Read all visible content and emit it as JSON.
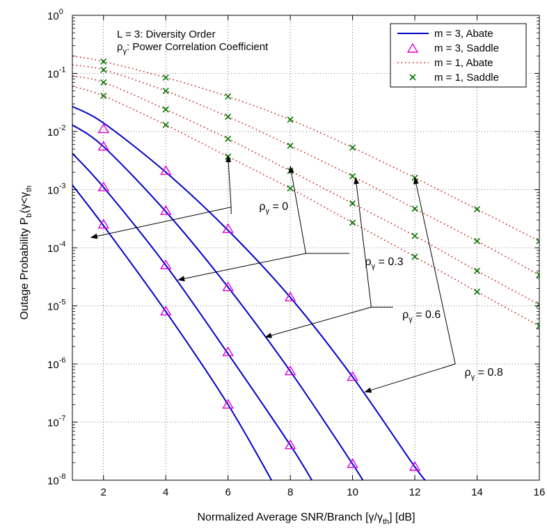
{
  "chart_data": {
    "type": "line",
    "xlabel": {
      "main": "Normalized Average SNR/Branch [",
      "g1": "γ",
      "slash": "/",
      "g2": "γ",
      "sub": "th",
      "end": "] [dB]"
    },
    "ylabel": {
      "main": "Outage Probability P",
      "sub1": "b",
      "open": "(",
      "g1": "γ",
      "lt": "<",
      "g2": "γ",
      "sub2": "th"
    },
    "xlim": [
      1,
      16
    ],
    "ylim_log10": [
      -8,
      0
    ],
    "log_y": true,
    "grid": true,
    "x_ticks": [
      2,
      4,
      6,
      8,
      10,
      12,
      14,
      16
    ],
    "y_tick_base": "10",
    "y_tick_exps": [
      "0",
      "-1",
      "-2",
      "-3",
      "-4",
      "-5",
      "-6",
      "-7",
      "-8"
    ],
    "note": {
      "line1": "L = 3: Diversity Order",
      "line2_sym": "ρ",
      "line2_sub": "γ",
      "line2_rest": ": Power Correlation Coefficient"
    },
    "legend": {
      "position": "top-right",
      "items": [
        {
          "label": "m = 3, Abate",
          "style": "solid-line",
          "color": "#0000cc"
        },
        {
          "label": "m = 3, Saddle",
          "style": "triangle",
          "color": "#dd00dd"
        },
        {
          "label": "m = 1, Abate",
          "style": "dotted-line",
          "color": "#cc0000"
        },
        {
          "label": "m = 1, Saddle",
          "style": "cross",
          "color": "#007700"
        }
      ]
    },
    "series_m3_abate": [
      {
        "rho": "0",
        "x": [
          1,
          2,
          4,
          6,
          8,
          10,
          12,
          12.5
        ],
        "y": [
          0.027,
          0.014,
          0.002,
          0.0002,
          1.4e-05,
          6e-07,
          1.7e-08,
          8e-09
        ]
      },
      {
        "rho": "0.3",
        "x": [
          1,
          2,
          4,
          6,
          8,
          10,
          10.5
        ],
        "y": [
          0.013,
          0.0055,
          0.00042,
          2.1e-05,
          7.5e-07,
          1.9e-08,
          7e-09
        ]
      },
      {
        "rho": "0.6",
        "x": [
          1,
          2,
          4,
          6,
          8,
          8.8
        ],
        "y": [
          0.0042,
          0.0011,
          5e-05,
          1.5e-06,
          4e-08,
          8e-09
        ]
      },
      {
        "rho": "0.8",
        "x": [
          1,
          2,
          4,
          6,
          7.5
        ],
        "y": [
          0.0012,
          0.00024,
          8e-06,
          2e-07,
          8e-09
        ]
      }
    ],
    "series_m3_saddle": [
      {
        "rho": "0",
        "x": [
          2,
          4,
          6,
          8,
          10,
          12
        ],
        "y": [
          0.011,
          0.0021,
          0.00021,
          1.4e-05,
          6e-07,
          1.7e-08
        ]
      },
      {
        "rho": "0.3",
        "x": [
          2,
          4,
          6,
          8,
          10
        ],
        "y": [
          0.0055,
          0.00043,
          2.1e-05,
          7.5e-07,
          1.9e-08
        ]
      },
      {
        "rho": "0.6",
        "x": [
          2,
          4,
          6,
          8
        ],
        "y": [
          0.0011,
          5e-05,
          1.6e-06,
          4e-08
        ]
      },
      {
        "rho": "0.8",
        "x": [
          2,
          4,
          6
        ],
        "y": [
          0.00025,
          8e-06,
          2e-07
        ]
      }
    ],
    "series_m1_abate": [
      {
        "rho": "0",
        "x": [
          1,
          2,
          4,
          6,
          8,
          10,
          12,
          14,
          16
        ],
        "y": [
          0.2,
          0.16,
          0.085,
          0.04,
          0.016,
          0.0053,
          0.0016,
          0.00046,
          0.00013
        ]
      },
      {
        "rho": "0.3",
        "x": [
          1,
          2,
          4,
          6,
          8,
          10,
          12,
          14,
          16
        ],
        "y": [
          0.14,
          0.115,
          0.05,
          0.018,
          0.0057,
          0.0017,
          0.00047,
          0.00013,
          3.4e-05
        ]
      },
      {
        "rho": "0.6",
        "x": [
          1,
          2,
          4,
          6,
          8,
          10,
          12,
          14,
          16
        ],
        "y": [
          0.09,
          0.07,
          0.024,
          0.0075,
          0.0021,
          0.00058,
          0.00016,
          4e-05,
          1.05e-05
        ]
      },
      {
        "rho": "0.8",
        "x": [
          1,
          2,
          4,
          6,
          8,
          10,
          12,
          14,
          16
        ],
        "y": [
          0.06,
          0.041,
          0.013,
          0.0037,
          0.00105,
          0.00027,
          7e-05,
          1.75e-05,
          4.5e-06
        ]
      }
    ],
    "series_m1_saddle": [
      {
        "rho": "0",
        "x": [
          2,
          4,
          6,
          8,
          10,
          12,
          14,
          16
        ],
        "y": [
          0.16,
          0.085,
          0.04,
          0.016,
          0.0053,
          0.0016,
          0.00046,
          0.00013
        ]
      },
      {
        "rho": "0.3",
        "x": [
          2,
          4,
          6,
          8,
          10,
          12,
          14,
          16
        ],
        "y": [
          0.115,
          0.05,
          0.018,
          0.0057,
          0.0017,
          0.00047,
          0.00013,
          3.4e-05
        ]
      },
      {
        "rho": "0.6",
        "x": [
          2,
          4,
          6,
          8,
          10,
          12,
          14,
          16
        ],
        "y": [
          0.07,
          0.024,
          0.0075,
          0.0021,
          0.00058,
          0.00016,
          4e-05,
          1.05e-05
        ]
      },
      {
        "rho": "0.8",
        "x": [
          2,
          4,
          6,
          8,
          10,
          12,
          14,
          16
        ],
        "y": [
          0.041,
          0.013,
          0.0037,
          0.00105,
          0.00027,
          7e-05,
          1.75e-05,
          4.5e-06
        ]
      }
    ],
    "annotations": [
      {
        "sym": "ρ",
        "sub": "γ",
        "text": " = 0",
        "label_x": 7.0,
        "label_y": 0.00045,
        "from_x": 6.1,
        "from_y": 0.00038,
        "vertex_x": 6.1,
        "vertex_y": 0.0005,
        "to": [
          [
            6.0,
            0.0038
          ],
          [
            1.6,
            0.00015
          ]
        ]
      },
      {
        "sym": "ρ",
        "sub": "γ",
        "text": " = 0.3",
        "label_x": 10.4,
        "label_y": 5e-05,
        "from_x": 9.9,
        "from_y": 8e-05,
        "vertex_x": 8.5,
        "vertex_y": 8e-05,
        "to": [
          [
            8.0,
            0.0025
          ],
          [
            4.4,
            2.8e-05
          ]
        ]
      },
      {
        "sym": "ρ",
        "sub": "γ",
        "text": " = 0.6",
        "label_x": 11.6,
        "label_y": 6.2e-06,
        "from_x": 11.3,
        "from_y": 9.5e-06,
        "vertex_x": 10.6,
        "vertex_y": 9.5e-06,
        "to": [
          [
            10.1,
            0.0016
          ],
          [
            7.2,
            2.9e-06
          ]
        ]
      },
      {
        "sym": "ρ",
        "sub": "γ",
        "text": " = 0.8",
        "label_x": 13.6,
        "label_y": 6.3e-07,
        "from_x": 13.3,
        "from_y": 1e-06,
        "vertex_x": 13.3,
        "vertex_y": 1e-06,
        "to": [
          [
            12.0,
            0.0016
          ],
          [
            10.4,
            3.3e-07
          ]
        ]
      }
    ]
  }
}
